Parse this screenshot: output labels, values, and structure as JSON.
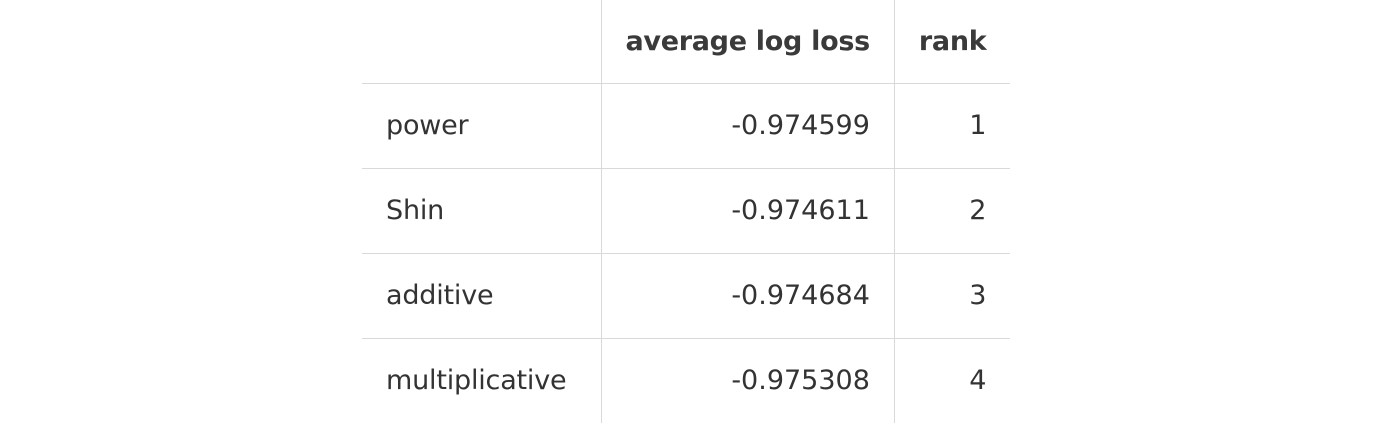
{
  "table": {
    "columns": [
      "",
      "average log loss",
      "rank"
    ],
    "rows": [
      {
        "name": "power",
        "loss": "-0.974599",
        "rank": "1"
      },
      {
        "name": "Shin",
        "loss": "-0.974611",
        "rank": "2"
      },
      {
        "name": "additive",
        "loss": "-0.974684",
        "rank": "3"
      },
      {
        "name": "multiplicative",
        "loss": "-0.975308",
        "rank": "4"
      }
    ]
  },
  "colors": {
    "text": "#333333",
    "grid": "#d9d9d9",
    "background": "#ffffff"
  }
}
